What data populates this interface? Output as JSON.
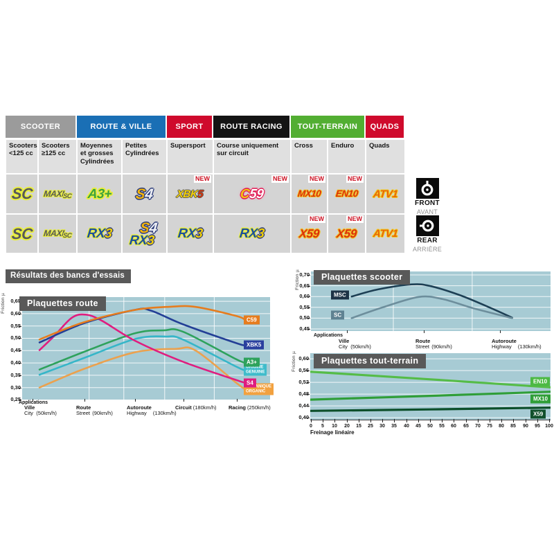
{
  "table": {
    "new_label": "NEW",
    "sections": [
      {
        "label": "SCOOTER",
        "color": "#9b9b9b",
        "span": 2
      },
      {
        "label": "ROUTE & VILLE",
        "color": "#1a6fb5",
        "span": 2
      },
      {
        "label": "SPORT",
        "color": "#cf0a2c",
        "span": 1
      },
      {
        "label": "ROUTE RACING",
        "color": "#141414",
        "span": 1
      },
      {
        "label": "TOUT-TERRAIN",
        "color": "#52ae32",
        "span": 2
      },
      {
        "label": "QUADS",
        "color": "#cf0a2c",
        "span": 1
      }
    ],
    "subheaders": [
      "Scooters <125 cc",
      "Scooters ≥125 cc",
      "Moyennes et grosses Cylindrées",
      "Petites Cylindrées",
      "Supersport",
      "Course uniquement sur circuit",
      "Cross",
      "Enduro",
      "Quads"
    ],
    "front_row": [
      {
        "logos": [
          {
            "t": "SC",
            "s": "sc"
          }
        ],
        "new": false
      },
      {
        "logos": [
          {
            "t": "MAXI",
            "t2": "SC",
            "s": "maxisc"
          }
        ],
        "new": false
      },
      {
        "logos": [
          {
            "t": "A3+",
            "s": "a3"
          }
        ],
        "new": false
      },
      {
        "logos": [
          {
            "t": "S4",
            "s": "s4"
          }
        ],
        "new": false
      },
      {
        "logos": [
          {
            "t": "XBK5",
            "s": "xbk5"
          }
        ],
        "new": true
      },
      {
        "logos": [
          {
            "t": "C59",
            "s": "c59"
          }
        ],
        "new": true
      },
      {
        "logos": [
          {
            "t": "MX10",
            "s": "mx10"
          }
        ],
        "new": true
      },
      {
        "logos": [
          {
            "t": "EN10",
            "s": "en10"
          }
        ],
        "new": true
      },
      {
        "logos": [
          {
            "t": "ATV1",
            "s": "atv1"
          }
        ],
        "new": false
      }
    ],
    "rear_row": [
      {
        "logos": [
          {
            "t": "SC",
            "s": "sc"
          }
        ],
        "new": false
      },
      {
        "logos": [
          {
            "t": "MAXI",
            "t2": "SC",
            "s": "maxisc"
          }
        ],
        "new": false
      },
      {
        "logos": [
          {
            "t": "RX3",
            "s": "rx3"
          }
        ],
        "new": false
      },
      {
        "logos": [
          {
            "t": "S4",
            "s": "s4"
          },
          {
            "t": "RX3",
            "s": "rx3"
          }
        ],
        "new": false
      },
      {
        "logos": [
          {
            "t": "RX3",
            "s": "rx3"
          }
        ],
        "new": false
      },
      {
        "logos": [
          {
            "t": "RX3",
            "s": "rx3"
          }
        ],
        "new": false
      },
      {
        "logos": [
          {
            "t": "X59",
            "s": "x59"
          }
        ],
        "new": true
      },
      {
        "logos": [
          {
            "t": "X59",
            "s": "x59"
          }
        ],
        "new": true
      },
      {
        "logos": [
          {
            "t": "ATV1",
            "s": "atv1"
          }
        ],
        "new": false
      }
    ]
  },
  "axle_labels": {
    "front": {
      "label": "FRONT",
      "sub": "AVANT"
    },
    "rear": {
      "label": "REAR",
      "sub": "ARRIÈRE"
    }
  },
  "results_header": "Résultats des bancs d'essais",
  "chart_data": [
    {
      "type": "line",
      "title": "Plaquettes route",
      "ylabel": "Friction µ",
      "xlabel": "Applications",
      "ylim": [
        0.25,
        0.65
      ],
      "yticks": [
        "0,65",
        "0,60",
        "0,55",
        "0,50",
        "0,45",
        "0,40",
        "0,35",
        "0,30",
        "0,25"
      ],
      "categories": [
        {
          "fr": "Ville",
          "en": "City",
          "speed": "(50km/h)",
          "x": 4.2
        },
        {
          "fr": "Route",
          "en": "Street",
          "speed": "(90km/h)",
          "x": 25
        },
        {
          "fr": "Autoroute",
          "en": "Highway",
          "speed": "(130km/h)",
          "x": 45.5
        },
        {
          "fr": "Circuit",
          "speed": "(180km/h)",
          "x": 65
        },
        {
          "fr": "Racing",
          "speed": "(250km/h)",
          "x": 86.5
        }
      ],
      "series": [
        {
          "name": "ORGANIQUE",
          "color": "#eba14e",
          "badge": {
            "lines": [
              "ORGANIQUE",
              "ORGANIC"
            ],
            "bg": "#f2a13f"
          },
          "points": [
            [
              7,
              0.3
            ],
            [
              25,
              0.376
            ],
            [
              45.5,
              0.443
            ],
            [
              62,
              0.457
            ],
            [
              70,
              0.45
            ],
            [
              86.5,
              0.318
            ],
            [
              90,
              0.293
            ]
          ]
        },
        {
          "name": "ORIGINE",
          "color": "#36b6c8",
          "badge": {
            "lines": [
              "ORIGINE",
              "GENUINE"
            ],
            "bg": "#3fbccb"
          },
          "points": [
            [
              7,
              0.352
            ],
            [
              25,
              0.42
            ],
            [
              45.5,
              0.497
            ],
            [
              58,
              0.507
            ],
            [
              65,
              0.494
            ],
            [
              86.5,
              0.384
            ],
            [
              90,
              0.371
            ]
          ]
        },
        {
          "name": "A3+",
          "color": "#2ea25c",
          "badge": {
            "lines": [
              "A3+"
            ],
            "bg": "#2ea25c"
          },
          "points": [
            [
              7,
              0.373
            ],
            [
              25,
              0.445
            ],
            [
              45.5,
              0.52
            ],
            [
              57,
              0.532
            ],
            [
              65,
              0.526
            ],
            [
              86.5,
              0.414
            ],
            [
              90,
              0.403
            ]
          ]
        },
        {
          "name": "S4",
          "color": "#df1d7f",
          "badge": {
            "lines": [
              "S4"
            ],
            "bg": "#df1d7f"
          },
          "points": [
            [
              7,
              0.452
            ],
            [
              13,
              0.51
            ],
            [
              20,
              0.583
            ],
            [
              25.5,
              0.596
            ],
            [
              32,
              0.572
            ],
            [
              45.5,
              0.49
            ],
            [
              65,
              0.404
            ],
            [
              86.5,
              0.33
            ],
            [
              90,
              0.32
            ]
          ]
        },
        {
          "name": "XBK5",
          "color": "#233f96",
          "badge": {
            "lines": [
              "XBK5"
            ],
            "bg": "#2a3f9e"
          },
          "points": [
            [
              7,
              0.483
            ],
            [
              25,
              0.561
            ],
            [
              45.5,
              0.615
            ],
            [
              52,
              0.612
            ],
            [
              65,
              0.556
            ],
            [
              86.5,
              0.48
            ],
            [
              90,
              0.472
            ]
          ]
        },
        {
          "name": "C59",
          "color": "#e67c1e",
          "badge": {
            "lines": [
              "C59"
            ],
            "bg": "#e67c1e"
          },
          "points": [
            [
              7,
              0.495
            ],
            [
              25,
              0.565
            ],
            [
              45.5,
              0.615
            ],
            [
              60,
              0.628
            ],
            [
              70,
              0.627
            ],
            [
              86.5,
              0.59
            ],
            [
              90,
              0.574
            ]
          ]
        }
      ]
    },
    {
      "type": "line",
      "title": "Plaquettes scooter",
      "ylabel": "Friction µ",
      "xlabel": "Applications",
      "ylim": [
        0.45,
        0.7
      ],
      "yticks": [
        "0,70",
        "0,65",
        "0,60",
        "0,55",
        "0,50",
        "0,45"
      ],
      "categories": [
        {
          "fr": "Ville",
          "en": "City",
          "speed": "(50km/h)",
          "x": 15
        },
        {
          "fr": "Route",
          "en": "Street",
          "speed": "(90km/h)",
          "x": 47
        },
        {
          "fr": "Autoroute",
          "en": "Highway",
          "speed": "(130km/h)",
          "x": 79
        }
      ],
      "series": [
        {
          "name": "MSC",
          "color": "#1d3f54",
          "badge": {
            "lines": [
              "MSC"
            ],
            "bg": "#1d3346",
            "v": 0.607
          },
          "points": [
            [
              17,
              0.6
            ],
            [
              28,
              0.633
            ],
            [
              42,
              0.656
            ],
            [
              50,
              0.648
            ],
            [
              62,
              0.607
            ],
            [
              74,
              0.552
            ],
            [
              84,
              0.502
            ]
          ]
        },
        {
          "name": "SC",
          "color": "#6d8e9c",
          "badge": {
            "lines": [
              "SC"
            ],
            "bg": "#5f8292",
            "v": 0.515
          },
          "points": [
            [
              17,
              0.5
            ],
            [
              30,
              0.55
            ],
            [
              45,
              0.598
            ],
            [
              55,
              0.588
            ],
            [
              68,
              0.545
            ],
            [
              84,
              0.5
            ]
          ]
        }
      ]
    },
    {
      "type": "line",
      "title": "Plaquettes tout-terrain",
      "ylabel": "Friction µ",
      "xlabel": "Freinage linéaire",
      "ylim": [
        0.4,
        0.6
      ],
      "yticks": [
        "0,60",
        "0,56",
        "0,52",
        "0,48",
        "0,44",
        "0,40"
      ],
      "xticks": [
        "0",
        "5",
        "10",
        "20",
        "15",
        "25",
        "30",
        "35",
        "40",
        "45",
        "50",
        "55",
        "60",
        "65",
        "70",
        "75",
        "80",
        "85",
        "90",
        "95",
        "100"
      ],
      "series": [
        {
          "name": "EN10",
          "color": "#55bc47",
          "badge": {
            "lines": [
              "EN10"
            ],
            "bg": "#4cb944",
            "v": 0.522
          },
          "points": [
            [
              0,
              0.556
            ],
            [
              50,
              0.53
            ],
            [
              100,
              0.503
            ]
          ]
        },
        {
          "name": "MX10",
          "color": "#2f9e38",
          "badge": {
            "lines": [
              "MX10"
            ],
            "bg": "#2f9e38",
            "v": 0.464
          },
          "points": [
            [
              0,
              0.461
            ],
            [
              50,
              0.474
            ],
            [
              100,
              0.488
            ]
          ]
        },
        {
          "name": "X59",
          "color": "#0c4f2a",
          "badge": {
            "lines": [
              "X59"
            ],
            "bg": "#11502c",
            "v": 0.412
          },
          "points": [
            [
              0,
              0.423
            ],
            [
              50,
              0.428
            ],
            [
              100,
              0.434
            ]
          ]
        }
      ]
    }
  ]
}
